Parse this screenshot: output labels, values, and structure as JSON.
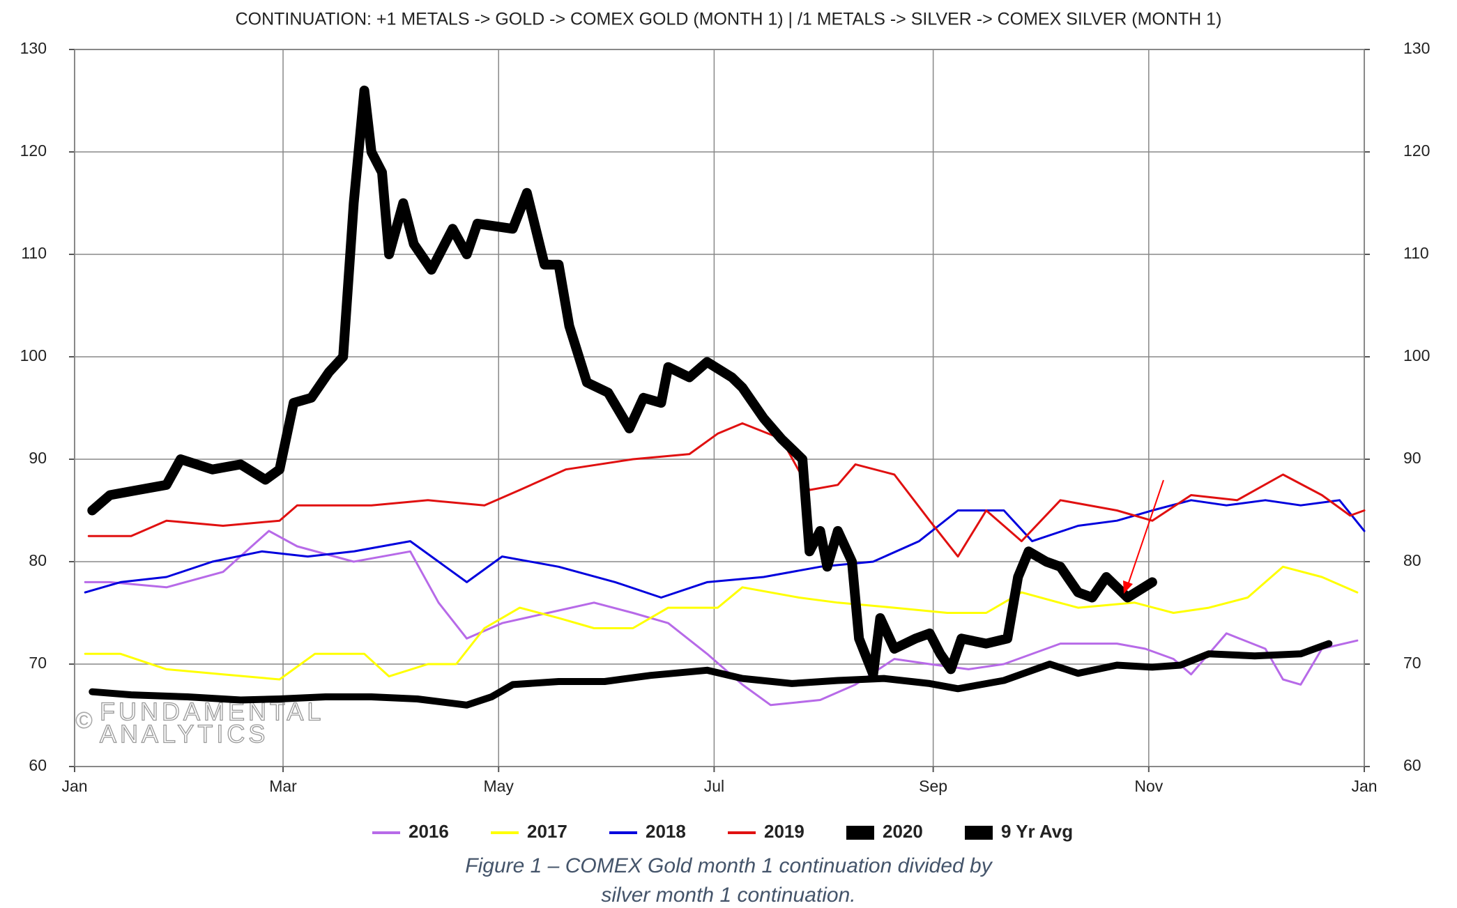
{
  "chart_data": {
    "type": "line",
    "title": "CONTINUATION: +1 METALS -> GOLD -> COMEX GOLD (MONTH 1) | /1 METALS -> SILVER -> COMEX SILVER (MONTH 1)",
    "xlim": [
      0,
      365
    ],
    "xticks": [
      {
        "value": 0,
        "label": "Jan"
      },
      {
        "value": 59,
        "label": "Mar"
      },
      {
        "value": 120,
        "label": "May"
      },
      {
        "value": 181,
        "label": "Jul"
      },
      {
        "value": 243,
        "label": "Sep"
      },
      {
        "value": 304,
        "label": "Nov"
      },
      {
        "value": 365,
        "label": "Jan"
      }
    ],
    "ylim": [
      60,
      130
    ],
    "yticks": [
      60,
      70,
      80,
      90,
      100,
      110,
      120,
      130
    ],
    "y2lim": [
      60,
      130
    ],
    "y2ticks": [
      60,
      70,
      80,
      90,
      100,
      110,
      120,
      130
    ],
    "grid": true,
    "legend": "bottom",
    "series": [
      {
        "name": "2016",
        "color": "#b76ae8",
        "line_width": 3,
        "x": [
          3,
          10,
          26,
          42,
          55,
          63,
          79,
          95,
          103,
          111,
          121,
          134,
          147,
          158,
          168,
          179,
          189,
          197,
          211,
          221,
          232,
          242,
          253,
          263,
          279,
          295,
          303,
          311,
          316,
          326,
          337,
          342,
          347,
          353,
          363
        ],
        "values": [
          78,
          78,
          77.5,
          79,
          83,
          81.5,
          80,
          81,
          76,
          72.5,
          74,
          75,
          76,
          75,
          74,
          71,
          68,
          66,
          66.5,
          68,
          70.5,
          70,
          69.5,
          70,
          72,
          72,
          71.5,
          70.5,
          69,
          73,
          71.5,
          68.5,
          68,
          71.5,
          72.3
        ]
      },
      {
        "name": "2017",
        "color": "#ffff00",
        "line_width": 3,
        "x": [
          3,
          13,
          26,
          42,
          58,
          68,
          82,
          89,
          100,
          108,
          116,
          126,
          137,
          147,
          158,
          168,
          182,
          189,
          205,
          216,
          232,
          247,
          258,
          268,
          284,
          300,
          311,
          321,
          332,
          342,
          353,
          363
        ],
        "values": [
          71,
          71,
          69.5,
          69,
          68.5,
          71,
          71,
          68.8,
          70,
          70,
          73.5,
          75.5,
          74.5,
          73.5,
          73.5,
          75.5,
          75.5,
          77.5,
          76.5,
          76,
          75.5,
          75,
          75,
          77,
          75.5,
          76,
          75,
          75.5,
          76.5,
          79.5,
          78.5,
          77
        ]
      },
      {
        "name": "2018",
        "color": "#0000dd",
        "line_width": 3,
        "x": [
          3,
          13,
          26,
          39,
          53,
          66,
          79,
          95,
          111,
          121,
          137,
          153,
          166,
          179,
          195,
          211,
          226,
          239,
          250,
          263,
          271,
          284,
          295,
          305,
          316,
          326,
          337,
          347,
          358,
          365
        ],
        "values": [
          77,
          78,
          78.5,
          80,
          81,
          80.5,
          81,
          82,
          78,
          80.5,
          79.5,
          78,
          76.5,
          78,
          78.5,
          79.5,
          80,
          82,
          85,
          85,
          82,
          83.5,
          84,
          85,
          86,
          85.5,
          86,
          85.5,
          86,
          83
        ]
      },
      {
        "name": "2019",
        "color": "#e01010",
        "line_width": 3,
        "x": [
          4,
          16,
          26,
          42,
          58,
          63,
          84,
          100,
          116,
          126,
          139,
          158,
          174,
          182,
          189,
          200,
          208,
          216,
          221,
          232,
          242,
          250,
          258,
          268,
          279,
          295,
          305,
          316,
          329,
          342,
          353,
          361,
          365
        ],
        "values": [
          82.5,
          82.5,
          84,
          83.5,
          84,
          85.5,
          85.5,
          86,
          85.5,
          87,
          89,
          90,
          90.5,
          92.5,
          93.5,
          92,
          87,
          87.5,
          89.5,
          88.5,
          84,
          80.5,
          85,
          82,
          86,
          85,
          84,
          86.5,
          86,
          88.5,
          86.5,
          84.5,
          85
        ]
      },
      {
        "name": "2020",
        "color": "#000000",
        "line_width": 14,
        "x": [
          5,
          10,
          18,
          26,
          30,
          39,
          47,
          54,
          58,
          62,
          67,
          72,
          76,
          79,
          82,
          84,
          87,
          89,
          93,
          96,
          101,
          107,
          111,
          114,
          124,
          128,
          133,
          137,
          140,
          145,
          151,
          157,
          161,
          166,
          168,
          174,
          179,
          186,
          189,
          195,
          200,
          206,
          208,
          211,
          213,
          216,
          220,
          222,
          226,
          228,
          232,
          238,
          242,
          245,
          248,
          251,
          258,
          264,
          267,
          270,
          275,
          279,
          284,
          288,
          292,
          298,
          305
        ],
        "values": [
          85,
          86.5,
          87,
          87.5,
          90,
          89,
          89.5,
          88,
          89,
          95.5,
          96,
          98.5,
          100,
          115,
          126,
          120,
          118,
          110,
          115,
          111,
          108.5,
          112.5,
          110,
          113,
          112.5,
          116,
          109,
          109,
          103,
          97.5,
          96.5,
          93,
          96,
          95.5,
          99,
          98,
          99.5,
          98,
          97,
          94,
          92,
          90,
          81,
          83,
          79.5,
          83,
          80,
          72.5,
          69,
          74.5,
          71.5,
          72.5,
          73,
          71,
          69.5,
          72.5,
          72,
          72.5,
          78.5,
          81,
          80,
          79.5,
          77,
          76.5,
          78.5,
          76.5,
          78
        ]
      },
      {
        "name": "9 Yr Avg",
        "color": "#000000",
        "line_width": 10,
        "x": [
          5,
          16,
          32,
          47,
          58,
          71,
          84,
          97,
          111,
          118,
          124,
          137,
          150,
          163,
          179,
          189,
          203,
          216,
          229,
          242,
          250,
          263,
          276,
          284,
          295,
          305,
          313,
          321,
          334,
          347,
          355
        ],
        "values": [
          67.3,
          67,
          66.8,
          66.5,
          66.6,
          66.8,
          66.8,
          66.6,
          66,
          66.8,
          68,
          68.3,
          68.3,
          68.9,
          69.4,
          68.6,
          68.1,
          68.4,
          68.6,
          68.1,
          67.6,
          68.4,
          70,
          69.1,
          69.9,
          69.7,
          69.9,
          71,
          70.8,
          71,
          72
        ]
      }
    ],
    "watermark": [
      "©",
      "FUNDAMENTAL",
      "ANALYTICS"
    ],
    "caption": [
      "Figure 1 – COMEX Gold month 1 continuation divided by",
      "silver month 1 continuation."
    ]
  }
}
